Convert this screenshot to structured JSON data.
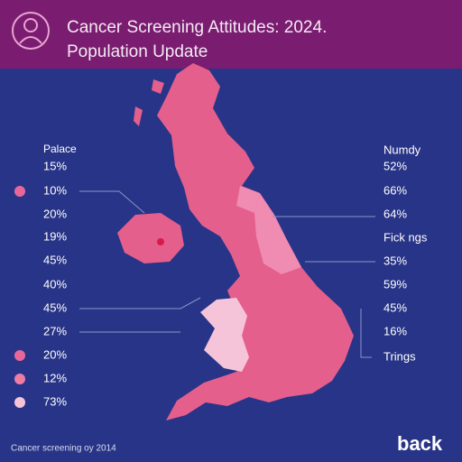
{
  "header": {
    "title": [
      "Cancer Screening Attitudes: 2024.",
      "Population Update"
    ]
  },
  "left_column": {
    "heading": "Palace",
    "items": [
      "15%",
      "10%",
      "20%",
      "19%",
      "45%",
      "40%",
      "45%",
      "27%",
      "20%",
      "12%",
      "73%"
    ]
  },
  "right_column": {
    "items": [
      "Numdy",
      "52%",
      "66%",
      "64%",
      "Fick ngs",
      "35%",
      "59%",
      "45%",
      "16%",
      "Trings"
    ]
  },
  "footer": {
    "note": "Cancer screening oy 2014",
    "back_button": "back"
  }
}
